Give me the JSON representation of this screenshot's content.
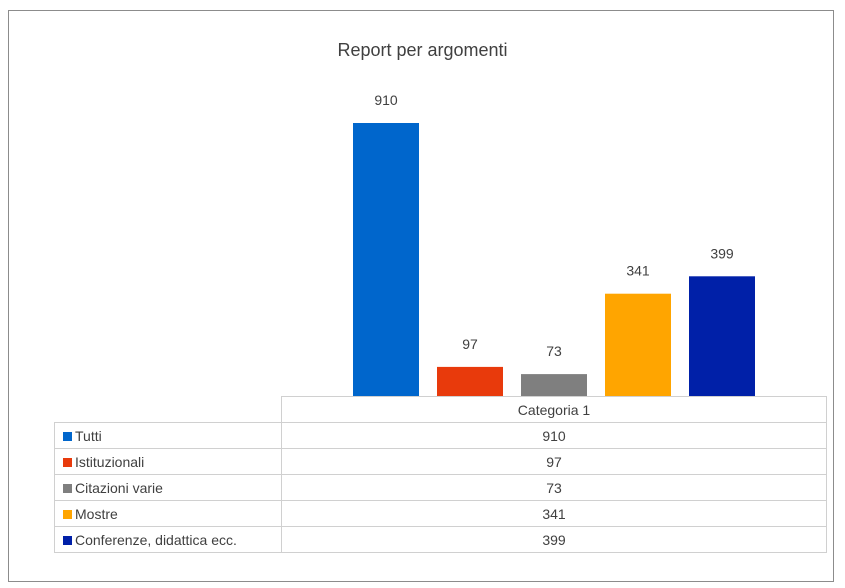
{
  "chart_data": {
    "type": "bar",
    "title": "Report per argomenti",
    "categories": [
      "Categoria 1"
    ],
    "series": [
      {
        "name": "Tutti",
        "values": [
          910
        ],
        "color": "#0066cc"
      },
      {
        "name": "Istituzionali",
        "values": [
          97
        ],
        "color": "#e83a0c"
      },
      {
        "name": "Citazioni varie",
        "values": [
          73
        ],
        "color": "#7f7f7f"
      },
      {
        "name": "Mostre",
        "values": [
          341
        ],
        "color": "#ffa500"
      },
      {
        "name": "Conferenze, didattica ecc.",
        "values": [
          399
        ],
        "color": "#0020a8"
      }
    ],
    "ylim": [
      0,
      1000
    ],
    "grid": false,
    "legend": "data table below chart"
  }
}
